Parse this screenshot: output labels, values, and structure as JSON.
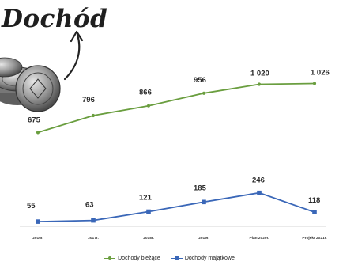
{
  "title": "Dochód",
  "chart_data": {
    "type": "line",
    "categories": [
      "2016r.",
      "2017r.",
      "2018r.",
      "2019r.",
      "Plan 2020r.",
      "Projekt 2021r."
    ],
    "series": [
      {
        "name": "Dochody bieżące",
        "values": [
          675,
          796,
          866,
          956,
          1020,
          1026
        ],
        "value_labels": [
          "675",
          "796",
          "866",
          "956",
          "1 020",
          "1 026"
        ],
        "color": "#6a9e3f"
      },
      {
        "name": "Dochody majątkowe",
        "values": [
          55,
          63,
          121,
          185,
          246,
          118
        ],
        "value_labels": [
          "55",
          "63",
          "121",
          "185",
          "246",
          "118"
        ],
        "color": "#3a67b8"
      }
    ],
    "legend_position": "bottom",
    "grid": false,
    "xlabel": "",
    "ylabel": ""
  }
}
